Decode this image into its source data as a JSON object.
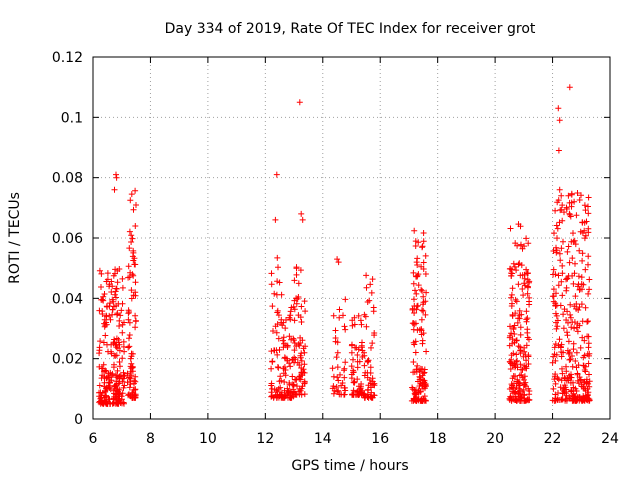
{
  "chart_data": {
    "type": "scatter",
    "title": "Day 334 of 2019, Rate Of TEC Index for receiver grot",
    "xlabel": "GPS time / hours",
    "ylabel": "ROTI / TECUs",
    "xlim": [
      6,
      24
    ],
    "ylim": [
      0,
      0.12
    ],
    "xticks": [
      "6",
      "8",
      "10",
      "12",
      "14",
      "16",
      "18",
      "20",
      "22",
      "24"
    ],
    "yticks": [
      "0",
      "0.02",
      "0.04",
      "0.06",
      "0.08",
      "0.1",
      "0.12"
    ],
    "grid": true,
    "marker": "plus",
    "color": "#ff0000",
    "clusters": [
      {
        "x_start": 6.2,
        "x_end": 7.1,
        "y_min": 0.005,
        "y_max": 0.05,
        "n": 240
      },
      {
        "x_start": 7.2,
        "x_end": 7.5,
        "y_min": 0.007,
        "y_max": 0.076,
        "n": 90
      },
      {
        "x_start": 12.2,
        "x_end": 12.6,
        "y_min": 0.007,
        "y_max": 0.057,
        "n": 60
      },
      {
        "x_start": 12.6,
        "x_end": 13.0,
        "y_min": 0.007,
        "y_max": 0.04,
        "n": 70
      },
      {
        "x_start": 13.0,
        "x_end": 13.4,
        "y_min": 0.008,
        "y_max": 0.053,
        "n": 70
      },
      {
        "x_start": 14.3,
        "x_end": 14.8,
        "y_min": 0.008,
        "y_max": 0.044,
        "n": 40
      },
      {
        "x_start": 15.0,
        "x_end": 15.4,
        "y_min": 0.008,
        "y_max": 0.036,
        "n": 60
      },
      {
        "x_start": 15.4,
        "x_end": 15.8,
        "y_min": 0.007,
        "y_max": 0.048,
        "n": 60
      },
      {
        "x_start": 17.1,
        "x_end": 17.6,
        "y_min": 0.006,
        "y_max": 0.063,
        "n": 140
      },
      {
        "x_start": 20.5,
        "x_end": 21.2,
        "y_min": 0.006,
        "y_max": 0.065,
        "n": 200
      },
      {
        "x_start": 22.0,
        "x_end": 23.3,
        "y_min": 0.006,
        "y_max": 0.075,
        "n": 320
      }
    ],
    "outliers": [
      {
        "x": 22.2,
        "y": 0.103
      },
      {
        "x": 22.25,
        "y": 0.099
      },
      {
        "x": 22.22,
        "y": 0.089
      },
      {
        "x": 22.6,
        "y": 0.11
      },
      {
        "x": 13.2,
        "y": 0.105
      },
      {
        "x": 12.4,
        "y": 0.081
      },
      {
        "x": 12.35,
        "y": 0.066
      },
      {
        "x": 13.25,
        "y": 0.068
      },
      {
        "x": 13.3,
        "y": 0.066
      },
      {
        "x": 6.8,
        "y": 0.081
      },
      {
        "x": 6.82,
        "y": 0.08
      },
      {
        "x": 6.75,
        "y": 0.076
      },
      {
        "x": 22.25,
        "y": 0.076
      },
      {
        "x": 22.3,
        "y": 0.074
      },
      {
        "x": 22.55,
        "y": 0.074
      },
      {
        "x": 22.75,
        "y": 0.072
      },
      {
        "x": 14.5,
        "y": 0.053
      },
      {
        "x": 14.55,
        "y": 0.052
      }
    ]
  }
}
